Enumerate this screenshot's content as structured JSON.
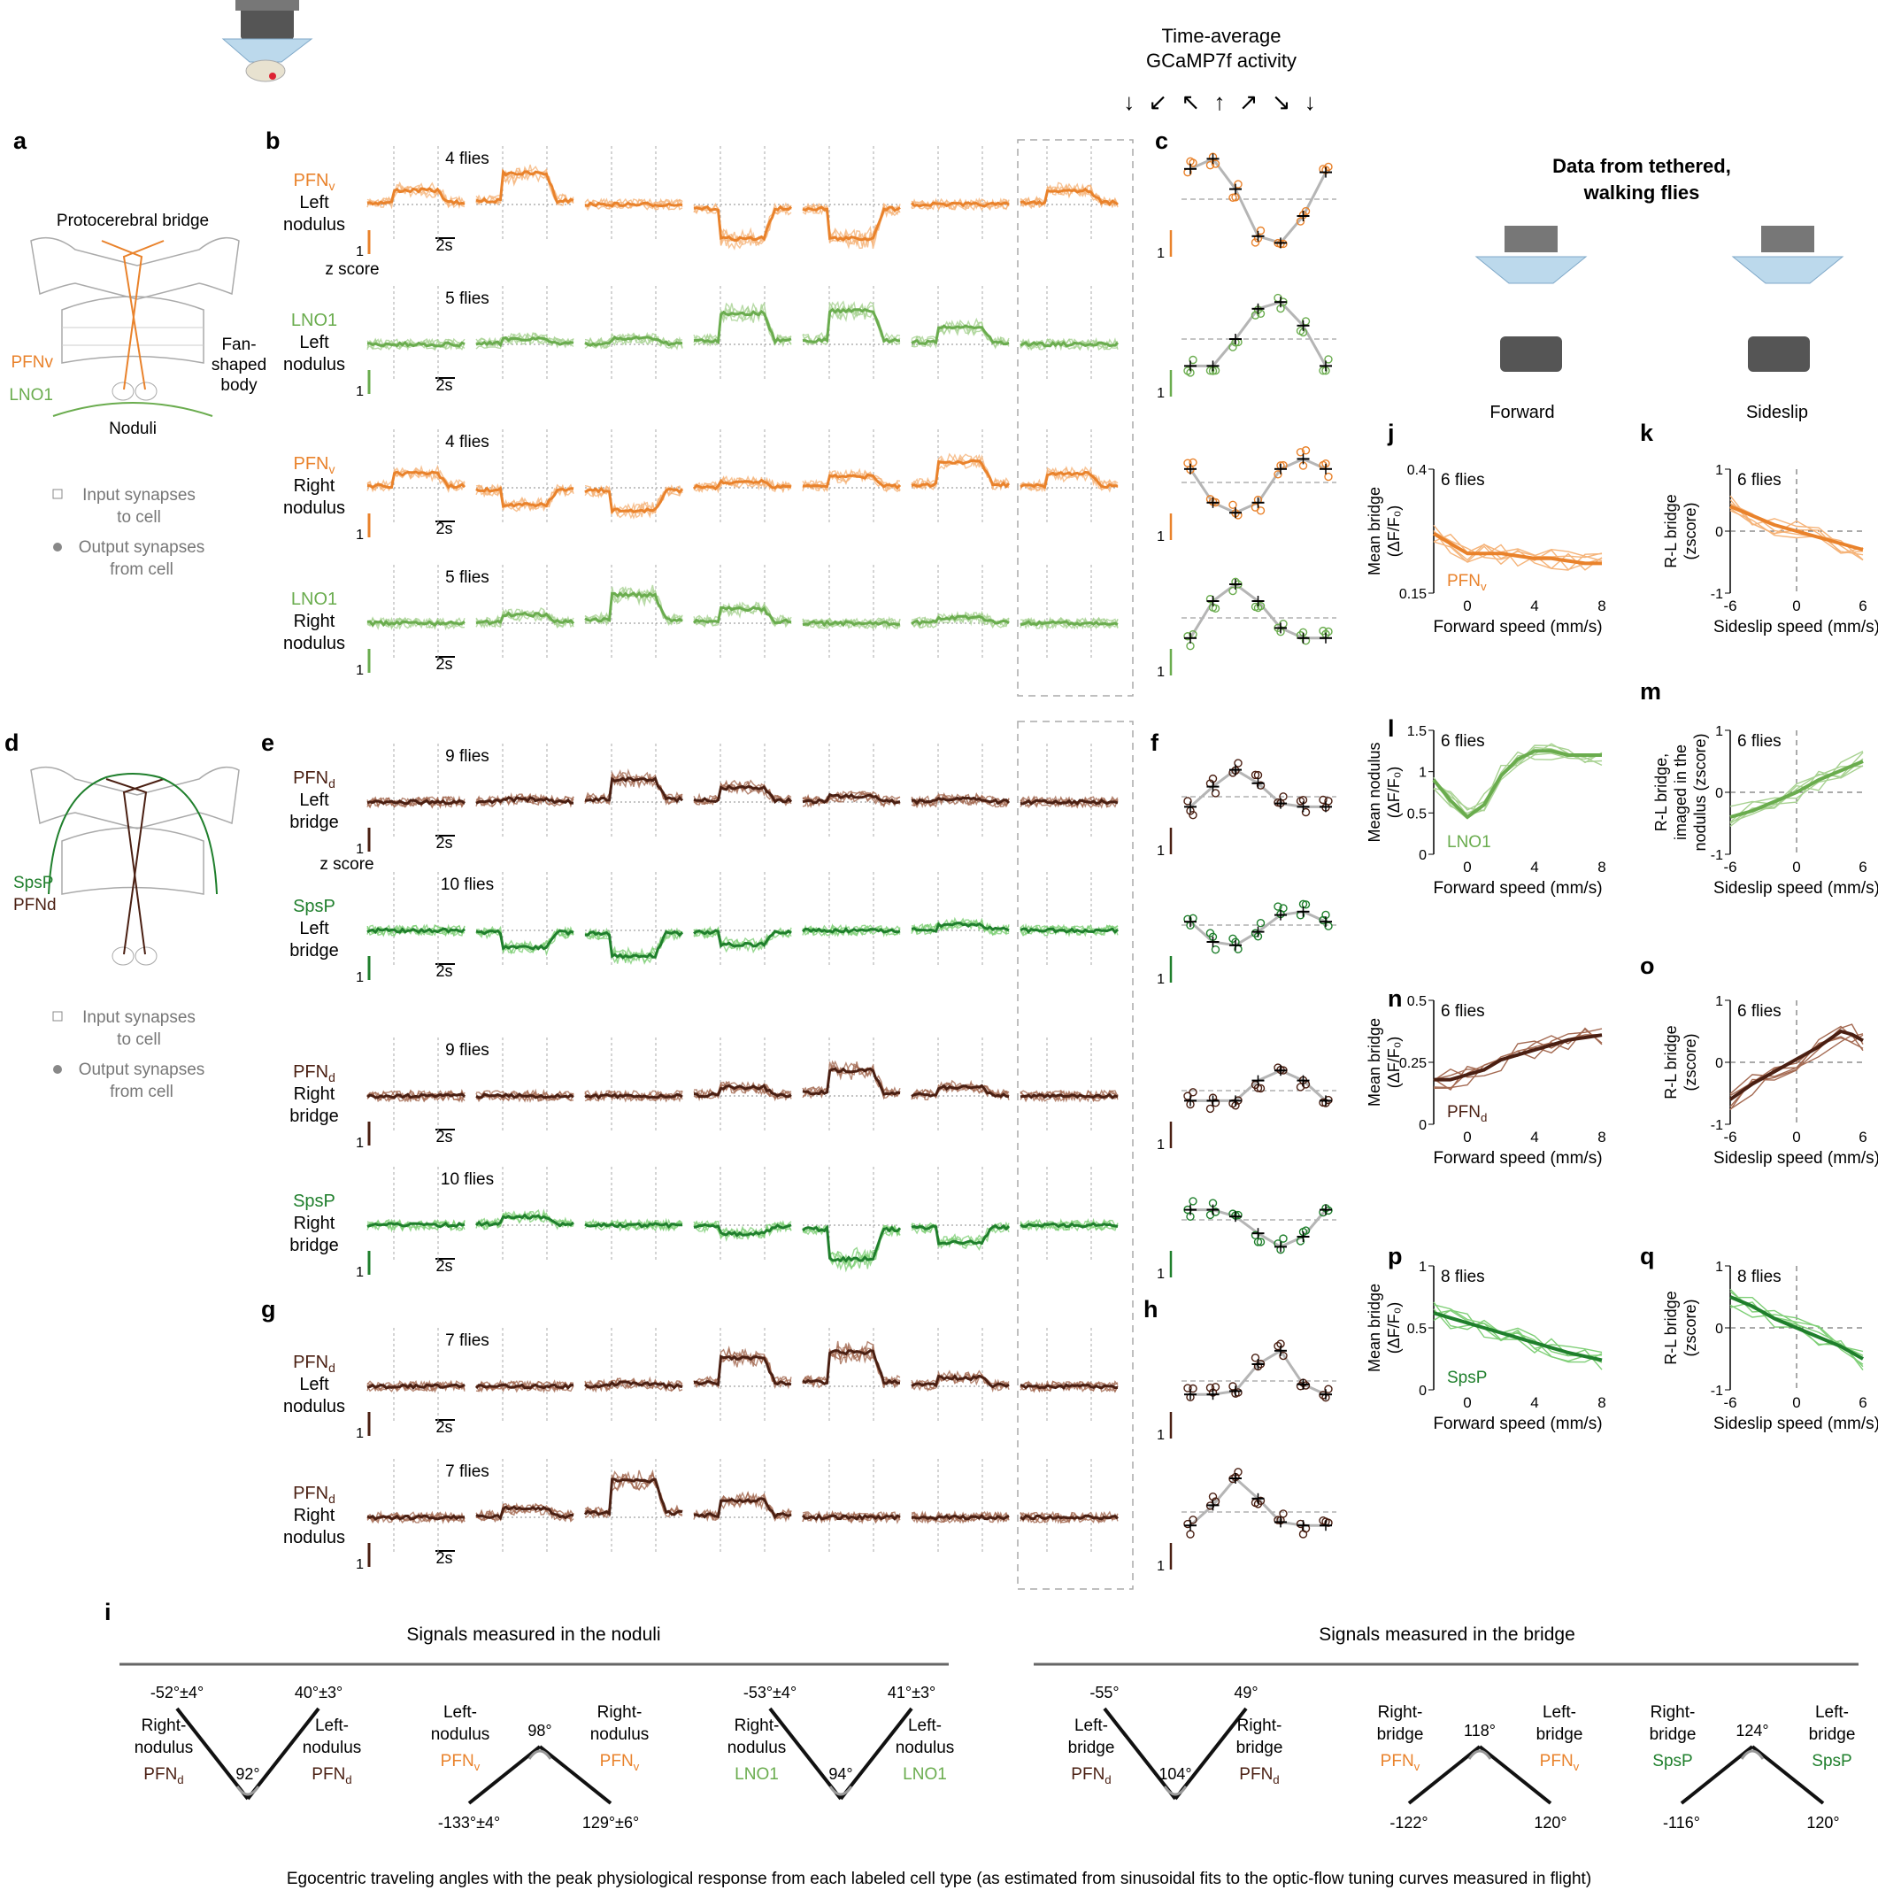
{
  "colors": {
    "pfnv": "#e9822b",
    "pfnv_light": "#f5b47a",
    "lno1": "#6aac4e",
    "lno1_light": "#a8d292",
    "pfnd": "#4a1f12",
    "pfnd_light": "#a46a52",
    "spsp": "#1f7f2c",
    "spsp_light": "#7fcf77",
    "grey": "#999999",
    "text": "#111111"
  },
  "header": {
    "title_line1": "Time-average",
    "title_line2": "GCaMP7f activity",
    "arrows": "↓ ↙ ↖ ↑ ↗ ↘ ↓"
  },
  "panel_letters": [
    "a",
    "b",
    "c",
    "d",
    "e",
    "f",
    "g",
    "h",
    "i",
    "j",
    "k",
    "l",
    "m",
    "n",
    "o",
    "p",
    "q"
  ],
  "panel_a": {
    "bridge": "Protocerebral bridge",
    "fan_line1": "Fan-",
    "fan_line2": "shaped",
    "fan_line3": "body",
    "pfnv": "PFNv",
    "lno1": "LNO1",
    "noduli": "Noduli",
    "legend_in_1": "Input synapses",
    "legend_in_2": "to cell",
    "legend_out_1": "Output synapses",
    "legend_out_2": "from cell"
  },
  "panel_d": {
    "spsp": "SpsP",
    "pfnd": "PFNd",
    "legend_in_1": "Input synapses",
    "legend_in_2": "to cell",
    "legend_out_1": "Output synapses",
    "legend_out_2": "from cell"
  },
  "scale": {
    "zscore": "z score",
    "one": "1",
    "time": "2s"
  },
  "rows": [
    {
      "panel": "b",
      "cell": "PFNv",
      "region_1": "Left",
      "region_2": "nodulus",
      "flies": "4 flies",
      "color": "pfnv",
      "light": "pfnv_light",
      "profile": [
        0.5,
        1.1,
        0,
        -1.2,
        -1.2,
        0,
        0.5
      ],
      "dots": [
        0.9,
        1.2,
        0.3,
        -1.1,
        -1.3,
        -0.5,
        0.8
      ]
    },
    {
      "panel": "b",
      "cell": "LNO1",
      "region_1": "Left",
      "region_2": "nodulus",
      "flies": "5 flies",
      "color": "lno1",
      "light": "lno1_light",
      "profile": [
        0,
        0.2,
        0.2,
        1.1,
        1.2,
        0.6,
        0
      ],
      "dots": [
        -0.8,
        -0.8,
        0,
        0.9,
        1.1,
        0.4,
        -0.8
      ]
    },
    {
      "panel": "b",
      "cell": "PFNv",
      "region_1": "Right",
      "region_2": "nodulus",
      "flies": "4 flies",
      "color": "pfnv",
      "light": "pfnv_light",
      "profile": [
        0.5,
        -0.6,
        -0.8,
        0.2,
        0.4,
        0.9,
        0.5
      ],
      "dots": [
        0.4,
        -0.6,
        -0.9,
        -0.6,
        0.4,
        0.7,
        0.4
      ]
    },
    {
      "panel": "b",
      "cell": "LNO1",
      "region_1": "Right",
      "region_2": "nodulus",
      "flies": "5 flies",
      "color": "lno1",
      "light": "lno1_light",
      "profile": [
        0,
        0.3,
        1.0,
        0.5,
        0,
        0.2,
        0
      ],
      "dots": [
        -0.6,
        0.5,
        1.0,
        0.5,
        -0.3,
        -0.6,
        -0.6
      ]
    },
    {
      "panel": "e",
      "cell": "PFNd",
      "region_1": "Left",
      "region_2": "bridge",
      "flies": "9 flies",
      "color": "pfnd",
      "light": "pfnd_light",
      "profile": [
        0,
        0.1,
        0.8,
        0.5,
        0.2,
        0.1,
        0
      ],
      "dots": [
        -0.3,
        0.3,
        0.8,
        0.4,
        -0.2,
        -0.3,
        -0.3
      ]
    },
    {
      "panel": "e",
      "cell": "SpsP",
      "region_1": "Left",
      "region_2": "bridge",
      "flies": "10 flies",
      "color": "spsp",
      "light": "spsp_light",
      "profile": [
        0,
        -0.6,
        -0.9,
        -0.5,
        0,
        0.2,
        0
      ],
      "dots": [
        0.1,
        -0.5,
        -0.6,
        -0.2,
        0.3,
        0.4,
        0.1
      ]
    },
    {
      "panel": "e",
      "cell": "PFNd",
      "region_1": "Right",
      "region_2": "bridge",
      "flies": "9 flies",
      "color": "pfnd",
      "light": "pfnd_light",
      "profile": [
        0,
        0,
        0,
        0.3,
        0.9,
        0.3,
        0
      ],
      "dots": [
        -0.3,
        -0.3,
        -0.3,
        0.3,
        0.6,
        0.3,
        -0.3
      ]
    },
    {
      "panel": "e",
      "cell": "SpsP",
      "region_1": "Right",
      "region_2": "bridge",
      "flies": "10 flies",
      "color": "spsp",
      "light": "spsp_light",
      "profile": [
        0,
        0.3,
        0,
        -0.3,
        -1.2,
        -0.6,
        0
      ],
      "dots": [
        0.3,
        0.3,
        0.1,
        -0.4,
        -0.8,
        -0.5,
        0.3
      ]
    },
    {
      "panel": "g",
      "cell": "PFNd",
      "region_1": "Left",
      "region_2": "nodulus",
      "flies": "7 flies",
      "color": "pfnd",
      "light": "pfnd_light",
      "profile": [
        0,
        0,
        0.1,
        1.0,
        1.2,
        0.3,
        0
      ],
      "dots": [
        -0.4,
        -0.4,
        -0.3,
        0.5,
        0.9,
        -0.1,
        -0.4
      ]
    },
    {
      "panel": "g",
      "cell": "PFNd",
      "region_1": "Right",
      "region_2": "nodulus",
      "flies": "7 flies",
      "color": "pfnd",
      "light": "pfnd_light",
      "profile": [
        0,
        0.3,
        1.3,
        0.6,
        0,
        0,
        0
      ],
      "dots": [
        -0.4,
        0.2,
        1.0,
        0.4,
        -0.3,
        -0.4,
        -0.4
      ]
    }
  ],
  "panel_i": {
    "noduli_title": "Signals measured in the noduli",
    "bridge_title": "Signals measured in the bridge",
    "caption": "Egocentric traveling angles with the peak physiological response from each labeled cell type (as estimated from sinusoidal fits to the optic-flow tuning curves measured in flight)",
    "groups": [
      {
        "left_angle": "-52°±4°",
        "right_angle": "40°±3°",
        "center": "92°",
        "left_1": "Right-",
        "left_2": "nodulus",
        "left_cell": "PFNd",
        "right_1": "Left-",
        "right_2": "nodulus",
        "right_cell": "PFNd",
        "left_color": "pfnd",
        "right_color": "pfnd",
        "shape": "V"
      },
      {
        "left_angle": "-133°±4°",
        "right_angle": "129°±6°",
        "center": "98°",
        "left_1": "Left-",
        "left_2": "nodulus",
        "left_cell": "PFNv",
        "right_1": "Right-",
        "right_2": "nodulus",
        "right_cell": "PFNv",
        "left_color": "pfnv",
        "right_color": "pfnv",
        "shape": "A"
      },
      {
        "left_angle": "-53°±4°",
        "right_angle": "41°±3°",
        "center": "94°",
        "left_1": "Right-",
        "left_2": "nodulus",
        "left_cell": "LNO1",
        "right_1": "Left-",
        "right_2": "nodulus",
        "right_cell": "LNO1",
        "left_color": "lno1",
        "right_color": "lno1",
        "shape": "V"
      },
      {
        "left_angle": "-55°",
        "right_angle": "49°",
        "center": "104°",
        "left_1": "Left-",
        "left_2": "bridge",
        "left_cell": "PFNd",
        "right_1": "Right-",
        "right_2": "bridge",
        "right_cell": "PFNd",
        "left_color": "pfnd",
        "right_color": "pfnd",
        "shape": "V"
      },
      {
        "left_angle": "-122°",
        "right_angle": "120°",
        "center": "118°",
        "left_1": "Right-",
        "left_2": "bridge",
        "left_cell": "PFNv",
        "right_1": "Left-",
        "right_2": "bridge",
        "right_cell": "PFNv",
        "left_color": "pfnv",
        "right_color": "pfnv",
        "shape": "A"
      },
      {
        "left_angle": "-116°",
        "right_angle": "120°",
        "center": "124°",
        "left_1": "Right-",
        "left_2": "bridge",
        "left_cell": "SpsP",
        "right_1": "Left-",
        "right_2": "bridge",
        "right_cell": "SpsP",
        "left_color": "spsp",
        "right_color": "spsp",
        "shape": "A"
      }
    ]
  },
  "walking": {
    "title_line1": "Data from tethered,",
    "title_line2": "walking flies",
    "forward": "Forward",
    "sideslip": "Sideslip"
  },
  "chart_data": [
    {
      "panel": "j",
      "type": "line",
      "flies": "6 flies",
      "cell": "PFNv",
      "xlabel": "Forward speed (mm/s)",
      "ylabel_1": "Mean bridge",
      "ylabel_2": "(ΔF/F₀)",
      "ylim": [
        0.15,
        0.4
      ],
      "yticks": [
        "0.15",
        "0.4"
      ],
      "xticks": [
        "0",
        "4",
        "8"
      ],
      "xlim": [
        -2,
        8
      ],
      "color": "pfnv",
      "light": "pfnv_light",
      "x": [
        -2,
        -1,
        0,
        1,
        2,
        3,
        4,
        5,
        6,
        7,
        8
      ],
      "y": [
        0.27,
        0.25,
        0.23,
        0.23,
        0.23,
        0.225,
        0.22,
        0.22,
        0.215,
        0.21,
        0.21
      ],
      "zero_line": false
    },
    {
      "panel": "k",
      "type": "line",
      "flies": "6 flies",
      "cell": "",
      "xlabel": "Sideslip speed (mm/s)",
      "ylabel_1": "R-L bridge",
      "ylabel_2": "(zscore)",
      "ylim": [
        -1,
        1
      ],
      "yticks": [
        "-1",
        "0",
        "1"
      ],
      "xticks": [
        "-6",
        "0",
        "6"
      ],
      "xlim": [
        -6,
        6
      ],
      "color": "pfnv",
      "light": "pfnv_light",
      "x": [
        -6,
        -4,
        -2,
        0,
        2,
        4,
        6
      ],
      "y": [
        0.4,
        0.25,
        0.1,
        0,
        -0.1,
        -0.2,
        -0.3
      ],
      "zero_line": true
    },
    {
      "panel": "l",
      "type": "line",
      "flies": "6 flies",
      "cell": "LNO1",
      "xlabel": "Forward speed (mm/s)",
      "ylabel_1": "Mean nodulus",
      "ylabel_2": "(ΔF/F₀)",
      "ylim": [
        0,
        1.5
      ],
      "yticks": [
        "0",
        "0.5",
        "1",
        "1.5"
      ],
      "xticks": [
        "0",
        "4",
        "8"
      ],
      "xlim": [
        -2,
        8
      ],
      "color": "lno1",
      "light": "lno1_light",
      "x": [
        -2,
        -1,
        0,
        1,
        2,
        3,
        4,
        5,
        6,
        7,
        8
      ],
      "y": [
        0.9,
        0.65,
        0.45,
        0.6,
        0.95,
        1.15,
        1.25,
        1.25,
        1.2,
        1.2,
        1.2
      ],
      "zero_line": false
    },
    {
      "panel": "m",
      "type": "line",
      "flies": "6 flies",
      "cell": "",
      "xlabel": "Sideslip speed (mm/s)",
      "ylabel_1": "R-L bridge,",
      "ylabel_2": "imaged in the",
      "ylabel_3": "nodulus (zscore)",
      "ylim": [
        -1,
        1
      ],
      "yticks": [
        "-1",
        "0",
        "1"
      ],
      "xticks": [
        "-6",
        "0",
        "6"
      ],
      "xlim": [
        -6,
        6
      ],
      "color": "lno1",
      "light": "lno1_light",
      "x": [
        -6,
        -4,
        -2,
        0,
        2,
        4,
        6
      ],
      "y": [
        -0.4,
        -0.3,
        -0.15,
        0,
        0.2,
        0.35,
        0.5
      ],
      "zero_line": true
    },
    {
      "panel": "n",
      "type": "line",
      "flies": "6 flies",
      "cell": "PFNd",
      "xlabel": "Forward speed (mm/s)",
      "ylabel_1": "Mean bridge",
      "ylabel_2": "(ΔF/F₀)",
      "ylim": [
        0,
        0.5
      ],
      "yticks": [
        "0",
        "0.25",
        "0.5"
      ],
      "xticks": [
        "0",
        "4",
        "8"
      ],
      "xlim": [
        -2,
        8
      ],
      "color": "pfnd",
      "light": "pfnd_light",
      "x": [
        -2,
        -1,
        0,
        1,
        2,
        3,
        4,
        5,
        6,
        7,
        8
      ],
      "y": [
        0.18,
        0.18,
        0.2,
        0.22,
        0.26,
        0.28,
        0.3,
        0.32,
        0.34,
        0.35,
        0.36
      ],
      "zero_line": false
    },
    {
      "panel": "o",
      "type": "line",
      "flies": "6 flies",
      "cell": "",
      "xlabel": "Sideslip speed (mm/s)",
      "ylabel_1": "R-L bridge",
      "ylabel_2": "(zscore)",
      "ylim": [
        -1,
        1
      ],
      "yticks": [
        "-1",
        "0",
        "1"
      ],
      "xticks": [
        "-6",
        "0",
        "6"
      ],
      "xlim": [
        -6,
        6
      ],
      "color": "pfnd",
      "light": "pfnd_light",
      "x": [
        -6,
        -4,
        -2,
        0,
        2,
        4,
        5,
        6
      ],
      "y": [
        -0.6,
        -0.35,
        -0.15,
        0.05,
        0.25,
        0.5,
        0.45,
        0.35
      ],
      "zero_line": true
    },
    {
      "panel": "p",
      "type": "line",
      "flies": "8 flies",
      "cell": "SpsP",
      "xlabel": "Forward speed (mm/s)",
      "ylabel_1": "Mean bridge",
      "ylabel_2": "(ΔF/F₀)",
      "ylim": [
        0,
        1
      ],
      "yticks": [
        "0",
        "0.5",
        "1"
      ],
      "xticks": [
        "0",
        "4",
        "8"
      ],
      "xlim": [
        -2,
        8
      ],
      "color": "spsp",
      "light": "spsp_light",
      "x": [
        -2,
        -1,
        0,
        1,
        2,
        3,
        4,
        5,
        6,
        7,
        8
      ],
      "y": [
        0.62,
        0.58,
        0.54,
        0.5,
        0.46,
        0.42,
        0.38,
        0.34,
        0.3,
        0.27,
        0.24
      ],
      "zero_line": false
    },
    {
      "panel": "q",
      "type": "line",
      "flies": "8 flies",
      "cell": "",
      "xlabel": "Sideslip speed (mm/s)",
      "ylabel_1": "R-L bridge",
      "ylabel_2": "(zscore)",
      "ylim": [
        -1,
        1
      ],
      "yticks": [
        "-1",
        "0",
        "1"
      ],
      "xticks": [
        "-6",
        "0",
        "6"
      ],
      "xlim": [
        -6,
        6
      ],
      "color": "spsp",
      "light": "spsp_light",
      "x": [
        -6,
        -4,
        -2,
        0,
        2,
        4,
        6
      ],
      "y": [
        0.5,
        0.35,
        0.15,
        0,
        -0.15,
        -0.3,
        -0.5
      ],
      "zero_line": true
    }
  ]
}
